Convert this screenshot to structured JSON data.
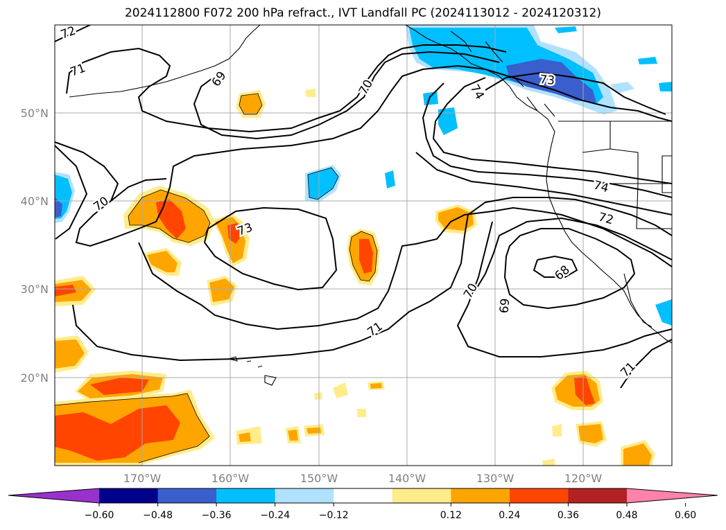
{
  "title": "2024112800 F072 200 hPa refract., IVT Landfall PC (2024113012 - 2024120312)",
  "map": {
    "lat_labels": [
      "50°N",
      "40°N",
      "30°N",
      "20°N"
    ],
    "lon_labels": [
      "170°W",
      "160°W",
      "150°W",
      "140°W",
      "130°W",
      "120°W"
    ],
    "contour_labels": [
      "72",
      "71",
      "69",
      "70",
      "73",
      "74",
      "73",
      "70",
      "74",
      "72",
      "68",
      "69",
      "70",
      "71",
      "71"
    ]
  },
  "colorbar": {
    "ticks": [
      "−0.60",
      "−0.48",
      "−0.36",
      "−0.24",
      "−0.12",
      "0.12",
      "0.24",
      "0.36",
      "0.48",
      "0.60"
    ],
    "colors": [
      "#9932cc",
      "#00008b",
      "#3a5fcd",
      "#00bfff",
      "#b0e2ff",
      "#ffffff",
      "#ffec8b",
      "#ffa500",
      "#ff4500",
      "#b22222",
      "#ff82ab"
    ]
  }
}
